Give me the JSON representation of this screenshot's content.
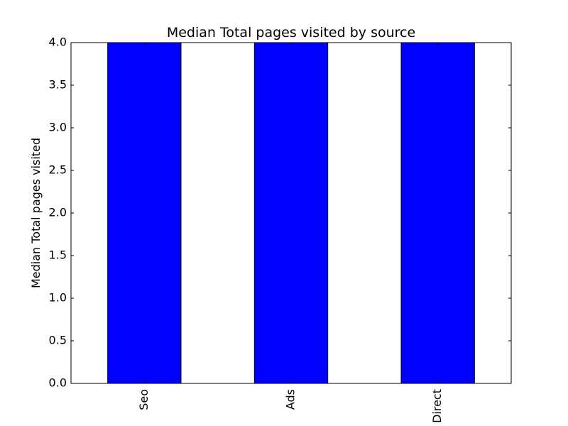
{
  "chart_data": {
    "type": "bar",
    "title": "Median Total pages visited by source",
    "xlabel": "",
    "ylabel": "Median Total pages visited",
    "categories": [
      "Seo",
      "Ads",
      "Direct"
    ],
    "values": [
      4.0,
      4.0,
      4.0
    ],
    "ylim": [
      0.0,
      4.0
    ],
    "yticks": [
      "0.0",
      "0.5",
      "1.0",
      "1.5",
      "2.0",
      "2.5",
      "3.0",
      "3.5",
      "4.0"
    ],
    "grid": false,
    "legend": "none",
    "colors": {
      "bar_fill": "#0000ff",
      "bar_edge": "#000000",
      "axes": "#000000",
      "background": "#ffffff"
    }
  }
}
